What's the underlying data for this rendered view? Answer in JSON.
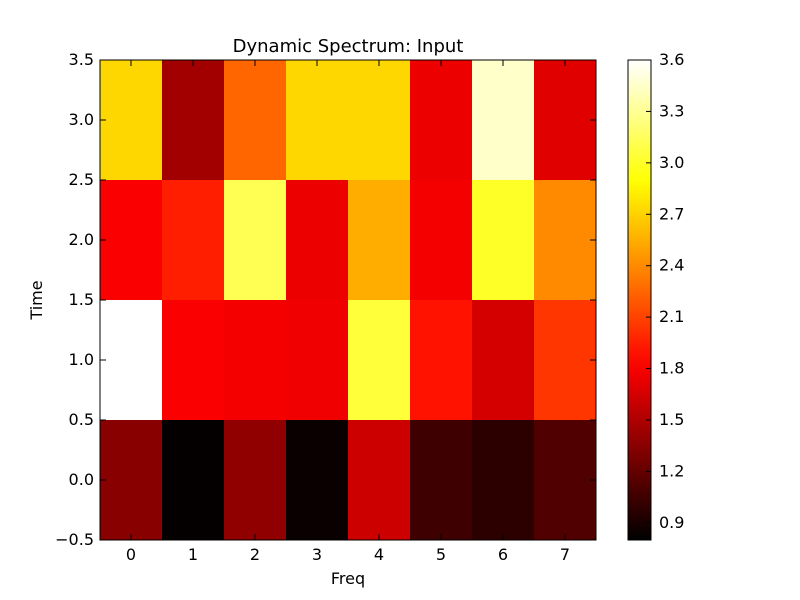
{
  "chart_data": {
    "type": "heatmap",
    "title": "Dynamic Spectrum: Input",
    "xlabel": "Freq",
    "ylabel": "Time",
    "x": [
      0,
      1,
      2,
      3,
      4,
      5,
      6,
      7
    ],
    "y": [
      0,
      1,
      2,
      3
    ],
    "xlim": [
      -0.5,
      7.5
    ],
    "ylim": [
      -0.5,
      3.5
    ],
    "xticks": [
      "0",
      "1",
      "2",
      "3",
      "4",
      "5",
      "6",
      "7"
    ],
    "yticks": [
      "−0.5",
      "0.0",
      "0.5",
      "1.0",
      "1.5",
      "2.0",
      "2.5",
      "3.0",
      "3.5"
    ],
    "colormap": "hot",
    "vmin": 0.8,
    "vmax": 3.6,
    "colorbar_ticks": [
      "0.9",
      "1.2",
      "1.5",
      "1.8",
      "2.1",
      "2.4",
      "2.7",
      "3.0",
      "3.3",
      "3.6"
    ],
    "values": [
      [
        1.35,
        0.82,
        1.38,
        0.84,
        1.62,
        1.05,
        0.98,
        1.12
      ],
      [
        3.6,
        1.8,
        1.78,
        1.76,
        3.05,
        1.9,
        1.65,
        2.05
      ],
      [
        1.8,
        1.95,
        3.12,
        1.75,
        2.55,
        1.78,
        3.0,
        2.4
      ],
      [
        2.72,
        1.45,
        2.25,
        2.72,
        2.72,
        1.75,
        3.45,
        1.7
      ]
    ]
  }
}
